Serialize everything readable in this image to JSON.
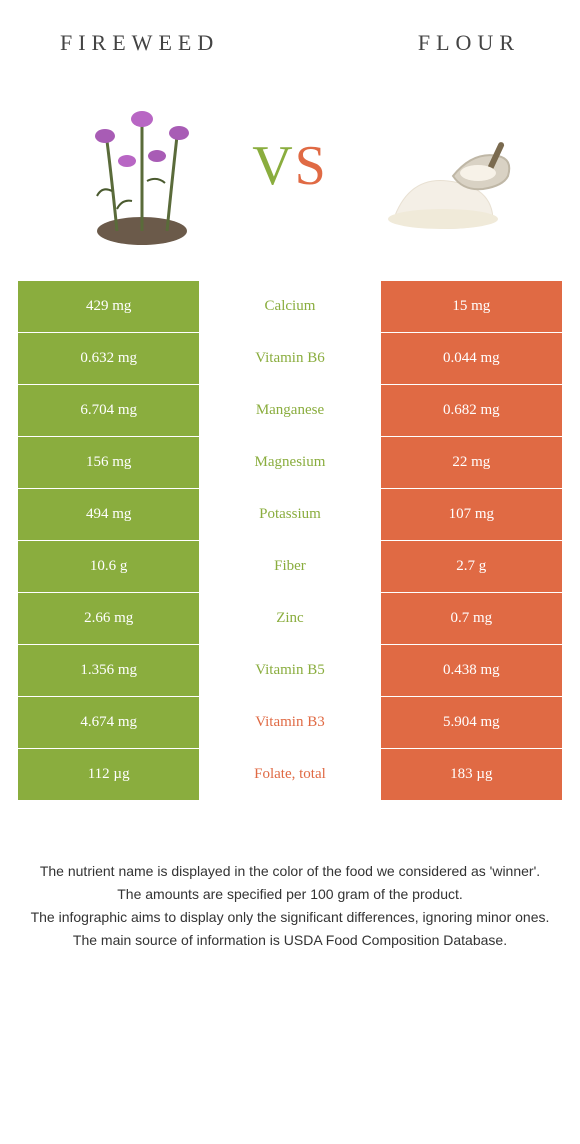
{
  "colors": {
    "green": "#8aad3e",
    "orange": "#e06a44",
    "text": "#333333",
    "bg": "#ffffff"
  },
  "food1": {
    "title": "FIREWEED"
  },
  "food2": {
    "title": "FLOUR"
  },
  "vs": {
    "v": "V",
    "s": "S"
  },
  "rows": [
    {
      "nutrient": "Calcium",
      "left": "429 mg",
      "right": "15 mg",
      "winner": "left"
    },
    {
      "nutrient": "Vitamin B6",
      "left": "0.632 mg",
      "right": "0.044 mg",
      "winner": "left"
    },
    {
      "nutrient": "Manganese",
      "left": "6.704 mg",
      "right": "0.682 mg",
      "winner": "left"
    },
    {
      "nutrient": "Magnesium",
      "left": "156 mg",
      "right": "22 mg",
      "winner": "left"
    },
    {
      "nutrient": "Potassium",
      "left": "494 mg",
      "right": "107 mg",
      "winner": "left"
    },
    {
      "nutrient": "Fiber",
      "left": "10.6 g",
      "right": "2.7 g",
      "winner": "left"
    },
    {
      "nutrient": "Zinc",
      "left": "2.66 mg",
      "right": "0.7 mg",
      "winner": "left"
    },
    {
      "nutrient": "Vitamin B5",
      "left": "1.356 mg",
      "right": "0.438 mg",
      "winner": "left"
    },
    {
      "nutrient": "Vitamin B3",
      "left": "4.674 mg",
      "right": "5.904 mg",
      "winner": "right"
    },
    {
      "nutrient": "Folate, total",
      "left": "112 µg",
      "right": "183 µg",
      "winner": "right"
    }
  ],
  "footer": {
    "line1": "The nutrient name is displayed in the color of the food we considered as 'winner'.",
    "line2": "The amounts are specified per 100 gram of the product.",
    "line3": "The infographic aims to display only the significant differences, ignoring minor ones.",
    "line4": "The main source of information is USDA Food Composition Database."
  }
}
